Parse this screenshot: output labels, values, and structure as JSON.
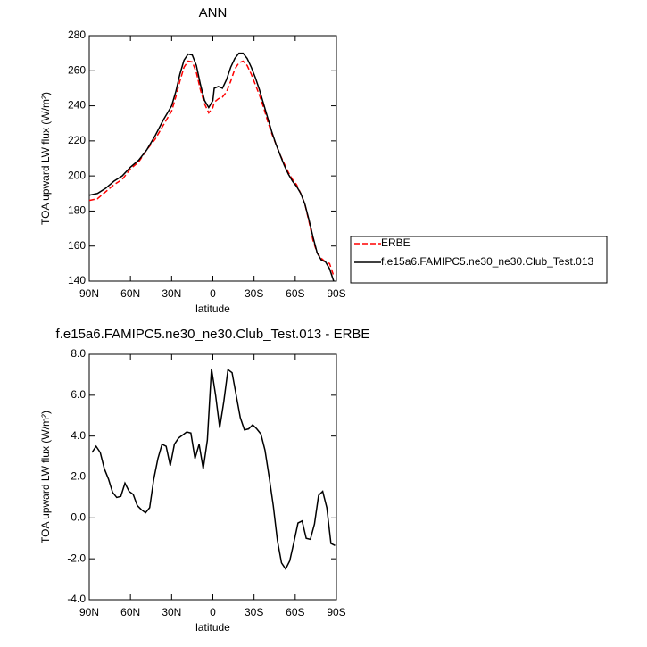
{
  "chart_data": [
    {
      "type": "line",
      "title": "ANN",
      "xlabel": "latitude",
      "ylabel": "TOA upward LW flux (W/m²)",
      "x": [
        90,
        84,
        78,
        72,
        66,
        60,
        54,
        48,
        42,
        36,
        30,
        27,
        24,
        21,
        18,
        15,
        12,
        9,
        6,
        3,
        0,
        -1,
        -4,
        -7,
        -10,
        -13,
        -16,
        -19,
        -22,
        -25,
        -28,
        -31,
        -34,
        -37,
        -40,
        -43,
        -46,
        -49,
        -52,
        -55,
        -58,
        -61,
        -64,
        -67,
        -70,
        -73,
        -76,
        -79,
        -82,
        -85,
        -88
      ],
      "series": [
        {
          "name": "ERBE",
          "color": "#ff0000",
          "style": "dashed",
          "values": [
            186,
            187,
            191,
            195,
            198,
            204,
            208,
            215,
            221,
            229,
            237,
            245,
            254,
            262,
            265.5,
            265,
            259,
            249,
            241,
            236,
            239,
            242,
            244,
            245,
            248,
            254,
            261,
            264.5,
            265.5,
            263,
            258,
            252,
            246,
            239,
            231,
            224,
            218,
            212,
            207,
            202,
            198,
            195,
            190,
            184,
            174,
            163,
            156,
            153,
            151,
            150,
            143
          ]
        },
        {
          "name": "f.e15a6.FAMIPC5.ne30_ne30.Club_Test.013",
          "color": "#000000",
          "style": "solid",
          "values": [
            189,
            190,
            193,
            197,
            200,
            205,
            209,
            215,
            223,
            232,
            240,
            248,
            258,
            266,
            269.5,
            269,
            263,
            252,
            243,
            239,
            243,
            250,
            251,
            250,
            255,
            262,
            267,
            270,
            270,
            267,
            262,
            256,
            249,
            241,
            233,
            225,
            218,
            212,
            206,
            201,
            197,
            194,
            190,
            184,
            175,
            165,
            156,
            152,
            151,
            147,
            140
          ]
        }
      ],
      "xlim": [
        90,
        -90
      ],
      "xticks": [
        {
          "value": 90,
          "label": "90N"
        },
        {
          "value": 60,
          "label": "60N"
        },
        {
          "value": 30,
          "label": "30N"
        },
        0,
        {
          "value": -30,
          "label": "30S"
        },
        {
          "value": -60,
          "label": "60S"
        },
        {
          "value": -90,
          "label": "90S"
        }
      ],
      "ylim": [
        140,
        280
      ],
      "yticks": [
        140,
        160,
        180,
        200,
        220,
        240,
        260,
        280
      ],
      "legend": "right"
    },
    {
      "type": "line",
      "title": "f.e15a6.FAMIPC5.ne30_ne30.Club_Test.013 - ERBE",
      "xlabel": "latitude",
      "ylabel": "TOA upward LW flux (W/m²)",
      "x": [
        88,
        85,
        82,
        79,
        76,
        73,
        70,
        67,
        64,
        61,
        58,
        55,
        52,
        49,
        46,
        43,
        40,
        37,
        34,
        31,
        28,
        25,
        22,
        19,
        16,
        13,
        10,
        7,
        4,
        1,
        -2,
        -5,
        -8,
        -11,
        -14,
        -17,
        -20,
        -23,
        -26,
        -29,
        -32,
        -35,
        -38,
        -41,
        -44,
        -47,
        -50,
        -53,
        -56,
        -59,
        -62,
        -65,
        -68,
        -71,
        -74,
        -77,
        -80,
        -83,
        -86,
        -89
      ],
      "series": [
        {
          "color": "#000000",
          "style": "solid",
          "values": [
            3.2,
            3.5,
            3.2,
            2.4,
            1.9,
            1.25,
            1.0,
            1.05,
            1.7,
            1.3,
            1.15,
            0.6,
            0.4,
            0.25,
            0.5,
            1.9,
            2.9,
            3.6,
            3.5,
            2.55,
            3.6,
            3.9,
            4.05,
            4.2,
            4.15,
            2.9,
            3.6,
            2.4,
            3.8,
            7.3,
            6.0,
            4.4,
            5.7,
            7.25,
            7.1,
            6.0,
            4.9,
            4.3,
            4.35,
            4.55,
            4.35,
            4.1,
            3.3,
            2.0,
            0.6,
            -1.1,
            -2.2,
            -2.5,
            -2.1,
            -1.2,
            -0.25,
            -0.15,
            -1.0,
            -1.05,
            -0.3,
            1.1,
            1.3,
            0.5,
            -1.25,
            -1.35
          ]
        }
      ],
      "xlim": [
        90,
        -90
      ],
      "xticks": [
        {
          "value": 90,
          "label": "90N"
        },
        {
          "value": 60,
          "label": "60N"
        },
        {
          "value": 30,
          "label": "30N"
        },
        0,
        {
          "value": -30,
          "label": "30S"
        },
        {
          "value": -60,
          "label": "60S"
        },
        {
          "value": -90,
          "label": "90S"
        }
      ],
      "ylim": [
        -4,
        8
      ],
      "yticks": [
        {
          "value": -4,
          "label": "-4.0"
        },
        {
          "value": -2,
          "label": "-2.0"
        },
        {
          "value": 0,
          "label": "0.0"
        },
        {
          "value": 2,
          "label": "2.0"
        },
        {
          "value": 4,
          "label": "4.0"
        },
        {
          "value": 6,
          "label": "6.0"
        },
        {
          "value": 8,
          "label": "8.0"
        }
      ]
    }
  ]
}
